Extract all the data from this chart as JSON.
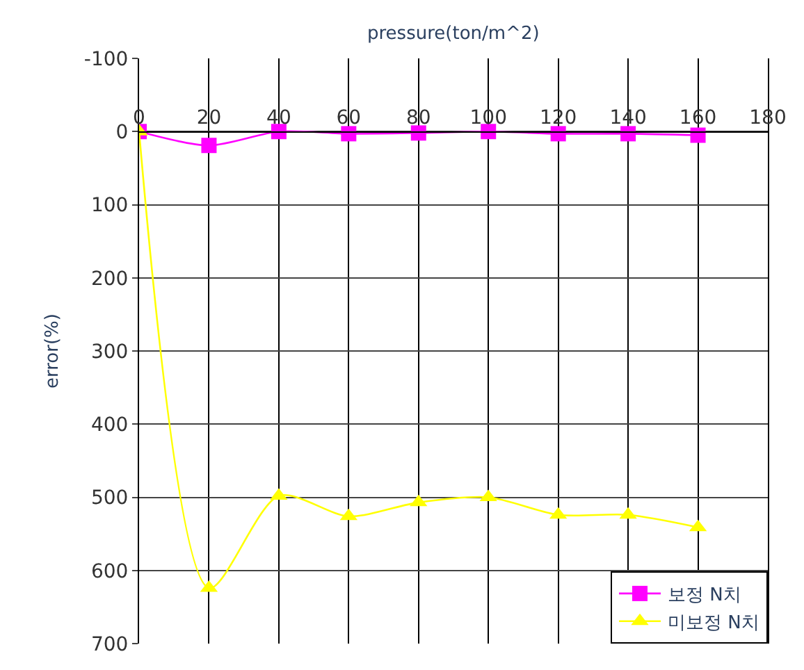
{
  "chart_data": {
    "type": "line",
    "xlabel": "pressure(ton/m^2)",
    "ylabel": "error(%)",
    "x": [
      0,
      20,
      40,
      60,
      80,
      100,
      120,
      140,
      160
    ],
    "series": [
      {
        "name": "보정 N치",
        "color": "#ff00ff",
        "marker": "square",
        "values": [
          0,
          19,
          0,
          3,
          2,
          0,
          3,
          3,
          5
        ]
      },
      {
        "name": "미보정 N치",
        "color": "#ffff00",
        "marker": "triangle",
        "values": [
          0,
          624,
          498,
          526,
          507,
          500,
          524,
          524,
          541
        ]
      }
    ],
    "xlim": [
      0,
      180
    ],
    "xticks": [
      0,
      20,
      40,
      60,
      80,
      100,
      120,
      140,
      160,
      180
    ],
    "ylim": [
      700,
      -100
    ],
    "yticks": [
      -100,
      0,
      100,
      200,
      300,
      400,
      500,
      600,
      700
    ],
    "grid": true,
    "legend": "bottom right",
    "line_style": "solid"
  }
}
